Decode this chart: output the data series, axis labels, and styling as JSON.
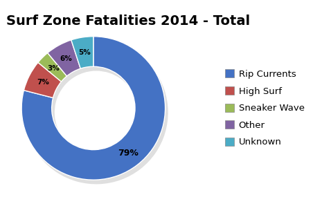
{
  "title": "Surf Zone Fatalities 2014 - Total",
  "labels": [
    "Rip Currents",
    "High Surf",
    "Sneaker Wave",
    "Other",
    "Unknown"
  ],
  "values": [
    79,
    7,
    3,
    6,
    5
  ],
  "colors": [
    "#4472C4",
    "#C0504D",
    "#9BBB59",
    "#8064A2",
    "#4BACC6"
  ],
  "pct_labels": [
    "79%",
    "7%",
    "3%",
    "6%",
    "5%"
  ],
  "legend_labels": [
    "Rip Currents",
    "High Surf",
    "Sneaker Wave",
    "Other",
    "Unknown"
  ],
  "background_color": "#FFFFFF",
  "title_fontsize": 14,
  "donut_width": 0.42,
  "startangle": 90,
  "legend_fontsize": 9.5
}
